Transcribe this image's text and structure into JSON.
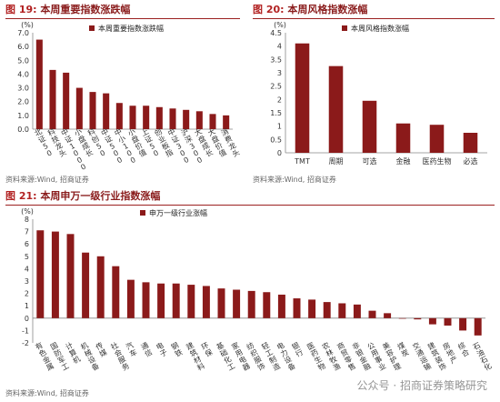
{
  "charts": [
    {
      "id": "fig19",
      "fig_label": "图 19:",
      "title": "本周重要指数涨跌幅",
      "source": "资料来源:Wind, 招商证券",
      "unit": "(%)",
      "chart_data": {
        "type": "bar",
        "legend": "本周重要指数涨跌幅",
        "categories": [
          "北证50",
          "科技龙头",
          "中证1000",
          "小盘成长",
          "科创50",
          "中证500",
          "中小100",
          "小盘价值",
          "上证50",
          "创业板指",
          "中证300",
          "沪深300",
          "大盘成长",
          "大盘价值",
          "消费龙头"
        ],
        "values": [
          6.5,
          4.3,
          4.1,
          3.0,
          2.7,
          2.6,
          1.9,
          1.7,
          1.7,
          1.6,
          1.5,
          1.4,
          1.3,
          1.1,
          1.0
        ],
        "ylim": [
          0,
          7
        ],
        "yticks": [
          "0.0",
          "1.0",
          "2.0",
          "3.0",
          "4.0",
          "5.0",
          "6.0",
          "7.0"
        ],
        "bar_color": "#8b1a1a"
      }
    },
    {
      "id": "fig20",
      "fig_label": "图 20:",
      "title": "本周风格指数涨幅",
      "source": "资料来源:Wind, 招商证券",
      "unit": "(%)",
      "chart_data": {
        "type": "bar",
        "legend": "本周风格指数涨幅",
        "categories": [
          "TMT",
          "周期",
          "可选",
          "金融",
          "医药生物",
          "必选"
        ],
        "values": [
          4.1,
          3.25,
          1.95,
          1.1,
          1.05,
          0.75
        ],
        "ylim": [
          0,
          4.5
        ],
        "yticks": [
          "0",
          "0.5",
          "1",
          "1.5",
          "2",
          "2.5",
          "3",
          "3.5",
          "4",
          "4.5"
        ],
        "bar_color": "#8b1a1a"
      }
    },
    {
      "id": "fig21",
      "fig_label": "图 21:",
      "title": "本周申万一级行业指数涨幅",
      "source": "资料来源:Wind, 招商证券",
      "unit": "(%)",
      "chart_data": {
        "type": "bar",
        "legend": "申万一级行业涨幅",
        "categories": [
          "有色金属",
          "国防军工",
          "计算机",
          "机械设备",
          "传媒",
          "社会服务",
          "汽车",
          "通信",
          "电子",
          "钢铁",
          "建筑材料",
          "环保",
          "基础化工",
          "家用电器",
          "纺织服饰",
          "轻工制造",
          "电力设备",
          "银行",
          "医药生物",
          "农林牧渔",
          "商贸零售",
          "非银金融",
          "公用事业",
          "美容护理",
          "煤炭",
          "交通运输",
          "建筑装饰",
          "房地产",
          "综合",
          "石油石化"
        ],
        "values": [
          7.1,
          7.0,
          6.8,
          5.3,
          5.0,
          4.2,
          3.1,
          2.9,
          2.8,
          2.8,
          2.7,
          2.6,
          2.4,
          2.3,
          2.2,
          2.1,
          1.9,
          1.6,
          1.5,
          1.3,
          1.2,
          1.1,
          0.6,
          0.4,
          0.0,
          -0.1,
          -0.5,
          -0.6,
          -1.0,
          -1.4
        ],
        "ylim": [
          -2,
          8
        ],
        "yticks": [
          "-2",
          "-1",
          "0",
          "1",
          "2",
          "3",
          "4",
          "5",
          "6",
          "7",
          "8"
        ],
        "bar_color": "#8b1a1a"
      }
    }
  ],
  "watermark": "公众号 · 招商证券策略研究"
}
